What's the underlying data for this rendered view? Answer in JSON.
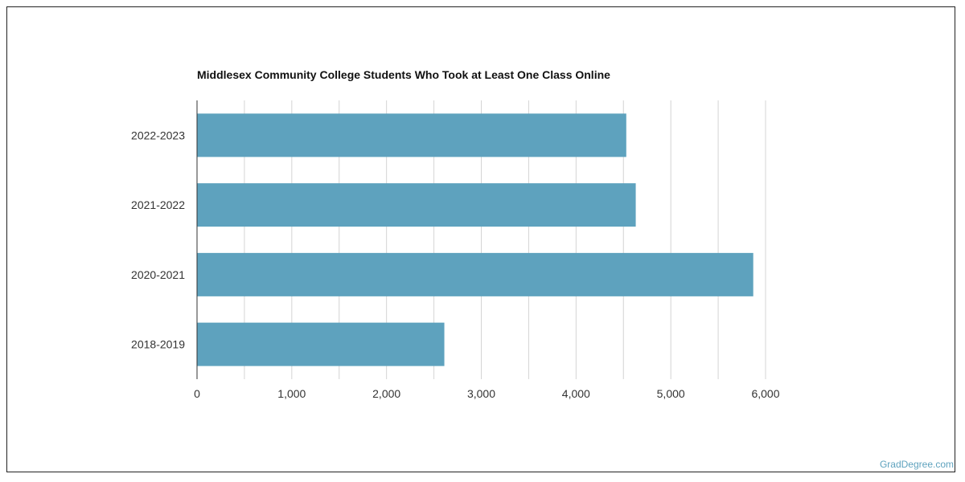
{
  "chart_data": {
    "type": "bar",
    "orientation": "horizontal",
    "title": "Middlesex Community College Students Who Took at Least One Class Online",
    "categories": [
      "2022-2023",
      "2021-2022",
      "2020-2021",
      "2018-2019"
    ],
    "values": [
      4530,
      4630,
      5870,
      2610
    ],
    "xlim": [
      0,
      6000
    ],
    "xticks": [
      0,
      1000,
      2000,
      3000,
      4000,
      5000,
      6000
    ],
    "xtick_labels": [
      "0",
      "1,000",
      "2,000",
      "3,000",
      "4,000",
      "5,000",
      "6,000"
    ],
    "grid": "vertical",
    "bar_color": "#5ea2be",
    "grid_color": "#d4d4d4"
  },
  "brand": "GradDegree.com"
}
